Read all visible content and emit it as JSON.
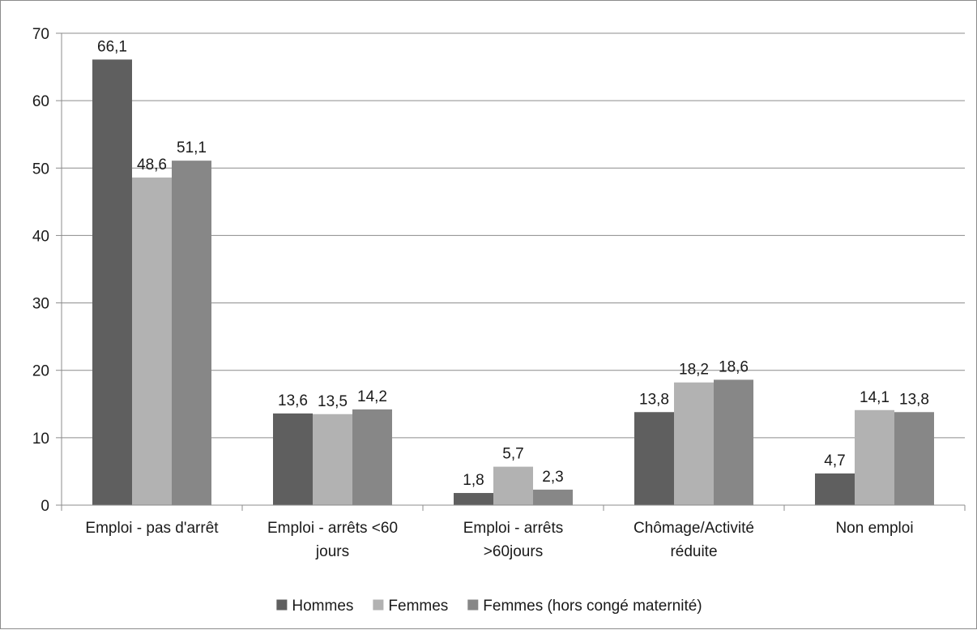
{
  "chart_data": {
    "type": "bar",
    "categories": [
      [
        "Emploi - pas d'arrêt"
      ],
      [
        "Emploi - arrêts <60",
        "jours"
      ],
      [
        "Emploi - arrêts",
        ">60jours"
      ],
      [
        "Chômage/Activité",
        "réduite"
      ],
      [
        "Non emploi"
      ]
    ],
    "series": [
      {
        "name": "Hommes",
        "color": "#5f5f5f",
        "values": [
          66.1,
          13.6,
          1.8,
          13.8,
          4.7
        ],
        "labels": [
          "66,1",
          "13,6",
          "1,8",
          "13,8",
          "4,7"
        ]
      },
      {
        "name": "Femmes",
        "color": "#b2b2b2",
        "values": [
          48.6,
          13.5,
          5.7,
          18.2,
          14.1
        ],
        "labels": [
          "48,6",
          "13,5",
          "5,7",
          "18,2",
          "14,1"
        ]
      },
      {
        "name": "Femmes (hors congé maternité)",
        "color": "#878787",
        "values": [
          51.1,
          14.2,
          2.3,
          18.6,
          13.8
        ],
        "labels": [
          "51,1",
          "14,2",
          "2,3",
          "18,6",
          "13,8"
        ]
      }
    ],
    "ylim": [
      0,
      70
    ],
    "yticks": [
      0,
      10,
      20,
      30,
      40,
      50,
      60,
      70
    ],
    "grid": true,
    "legend_position": "bottom",
    "title": "",
    "xlabel": "",
    "ylabel": ""
  }
}
